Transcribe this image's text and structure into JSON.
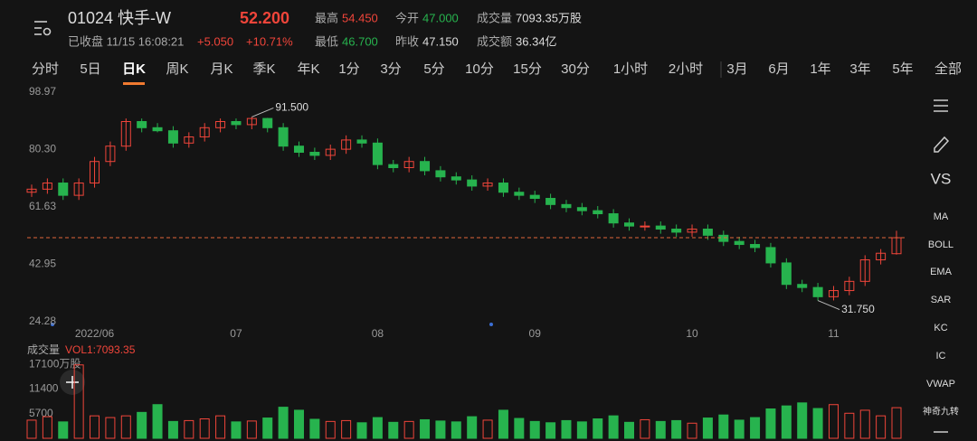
{
  "header": {
    "title": "01024 快手-W",
    "price": "52.200",
    "status": "已收盘 11/15 16:08:21",
    "change": "+5.050",
    "change_pct": "+10.71%",
    "stats": [
      {
        "label": "最高",
        "value": "54.450",
        "color": "#f0453a"
      },
      {
        "label": "今开",
        "value": "47.000",
        "color": "#27b34e"
      },
      {
        "label": "成交量",
        "value": "7093.35万股",
        "color": "#dddddd"
      },
      {
        "label": "最低",
        "value": "46.700",
        "color": "#27b34e"
      },
      {
        "label": "昨收",
        "value": "47.150",
        "color": "#dddddd"
      },
      {
        "label": "成交额",
        "value": "36.34亿",
        "color": "#dddddd"
      }
    ]
  },
  "tabs": [
    "分时",
    "5日",
    "日K",
    "周K",
    "月K",
    "季K",
    "年K",
    "1分",
    "3分",
    "5分",
    "10分",
    "15分",
    "30分",
    "1小时",
    "2小时",
    "3月",
    "6月",
    "1年",
    "3年",
    "5年",
    "全部"
  ],
  "active_tab": "日K",
  "toolbar": {
    "vs": "VS",
    "indicators": [
      "MA",
      "BOLL",
      "EMA",
      "SAR",
      "KC",
      "IC",
      "VWAP",
      "神奇九转"
    ]
  },
  "chart_data": [
    {
      "type": "candlestick",
      "up_color": "#f0453a",
      "down_color": "#27b34e",
      "grid": false,
      "categories": [
        null,
        null,
        null,
        null,
        "2022/06",
        null,
        null,
        null,
        null,
        null,
        null,
        null,
        null,
        "07",
        null,
        null,
        null,
        null,
        null,
        null,
        null,
        null,
        "08",
        null,
        null,
        null,
        null,
        null,
        null,
        null,
        null,
        null,
        "09",
        null,
        null,
        null,
        null,
        null,
        null,
        null,
        null,
        null,
        "10",
        null,
        null,
        null,
        null,
        null,
        null,
        null,
        null,
        "11",
        null,
        null,
        null,
        null
      ],
      "open": [
        67,
        68,
        70,
        66,
        70,
        77,
        82,
        90,
        88,
        87,
        83,
        85,
        88,
        90,
        89,
        91,
        88,
        82,
        80,
        79,
        81,
        84,
        83,
        76,
        75,
        77,
        74,
        72,
        71,
        69,
        70,
        67,
        66,
        65,
        63,
        62,
        61,
        60,
        57,
        56,
        56,
        55,
        54,
        55,
        53,
        51,
        50,
        49,
        44,
        37,
        36,
        33,
        35,
        38,
        45,
        47
      ],
      "close": [
        68,
        70,
        66,
        70,
        77,
        82,
        90,
        88,
        87,
        83,
        85,
        88,
        90,
        89,
        91,
        88,
        82,
        80,
        79,
        81,
        84,
        83,
        76,
        75,
        77,
        74,
        72,
        71,
        69,
        70,
        67,
        66,
        65,
        63,
        62,
        61,
        60,
        57,
        56,
        56,
        55,
        54,
        55,
        53,
        51,
        50,
        49,
        44,
        37,
        36,
        33,
        35,
        38,
        45,
        47.15,
        52.2
      ],
      "high": [
        69.5,
        71.5,
        71.5,
        71.5,
        78.5,
        83.5,
        91.0,
        91.0,
        89.5,
        88.5,
        86.5,
        89.5,
        91.0,
        91.0,
        91.5,
        91.2,
        89.5,
        83.5,
        81.5,
        82.5,
        85.5,
        85.5,
        84.5,
        77.5,
        78.5,
        78.5,
        75.5,
        73.5,
        72.5,
        71.5,
        71.5,
        68.5,
        67.5,
        66.5,
        64.5,
        63.5,
        62.5,
        61.5,
        58.5,
        57.5,
        57.5,
        56.5,
        56.5,
        56.5,
        54.5,
        52.5,
        51.5,
        50.5,
        45.5,
        38.5,
        37.5,
        36.5,
        39.5,
        46.5,
        48.5,
        54.45
      ],
      "low": [
        65.5,
        66.5,
        64.5,
        64.5,
        68.5,
        75.5,
        80.5,
        86.5,
        86.5,
        81.5,
        81.5,
        83.5,
        86.5,
        87.5,
        87.5,
        86.5,
        80.5,
        78.5,
        77.5,
        77.5,
        79.5,
        81.5,
        74.5,
        73.5,
        73.5,
        72.5,
        70.5,
        69.5,
        67.5,
        67.5,
        65.5,
        64.5,
        63.5,
        61.5,
        60.5,
        59.5,
        58.5,
        55.5,
        54.5,
        54.5,
        53.5,
        52.5,
        52.5,
        51.5,
        49.5,
        48.5,
        47.5,
        42.5,
        35.5,
        34.5,
        31.75,
        31.8,
        33.5,
        36.5,
        43.5,
        46.7
      ],
      "ylim": [
        24.28,
        98.97
      ],
      "yticks": [
        98.97,
        {
          "value": 80.3,
          "label": "80.30"
        },
        61.63,
        42.95,
        24.28
      ],
      "annotations": [
        {
          "label": "91.500",
          "value": 91.5,
          "of": "high"
        },
        {
          "label": "31.750",
          "value": 31.75,
          "of": "low"
        }
      ]
    },
    {
      "type": "bar",
      "title": "成交量",
      "series_label": "VOL1:7093.35",
      "values": [
        4200,
        5000,
        3800,
        17000,
        5200,
        4800,
        5200,
        6000,
        7800,
        3900,
        4100,
        4500,
        5200,
        3800,
        4000,
        4700,
        7200,
        6500,
        4400,
        3900,
        4100,
        3600,
        4800,
        3700,
        3900,
        4300,
        4000,
        3800,
        5000,
        4200,
        6500,
        4600,
        3900,
        3600,
        4100,
        3800,
        4500,
        5200,
        3700,
        4300,
        3900,
        4100,
        3500,
        4700,
        5400,
        4200,
        4800,
        6800,
        7500,
        8200,
        6900,
        7800,
        5800,
        6500,
        5200,
        7093.35
      ],
      "ylim": [
        0,
        18000
      ],
      "yticks": [
        {
          "value": 17100,
          "label": "17100万股"
        },
        11400,
        5700
      ]
    }
  ]
}
